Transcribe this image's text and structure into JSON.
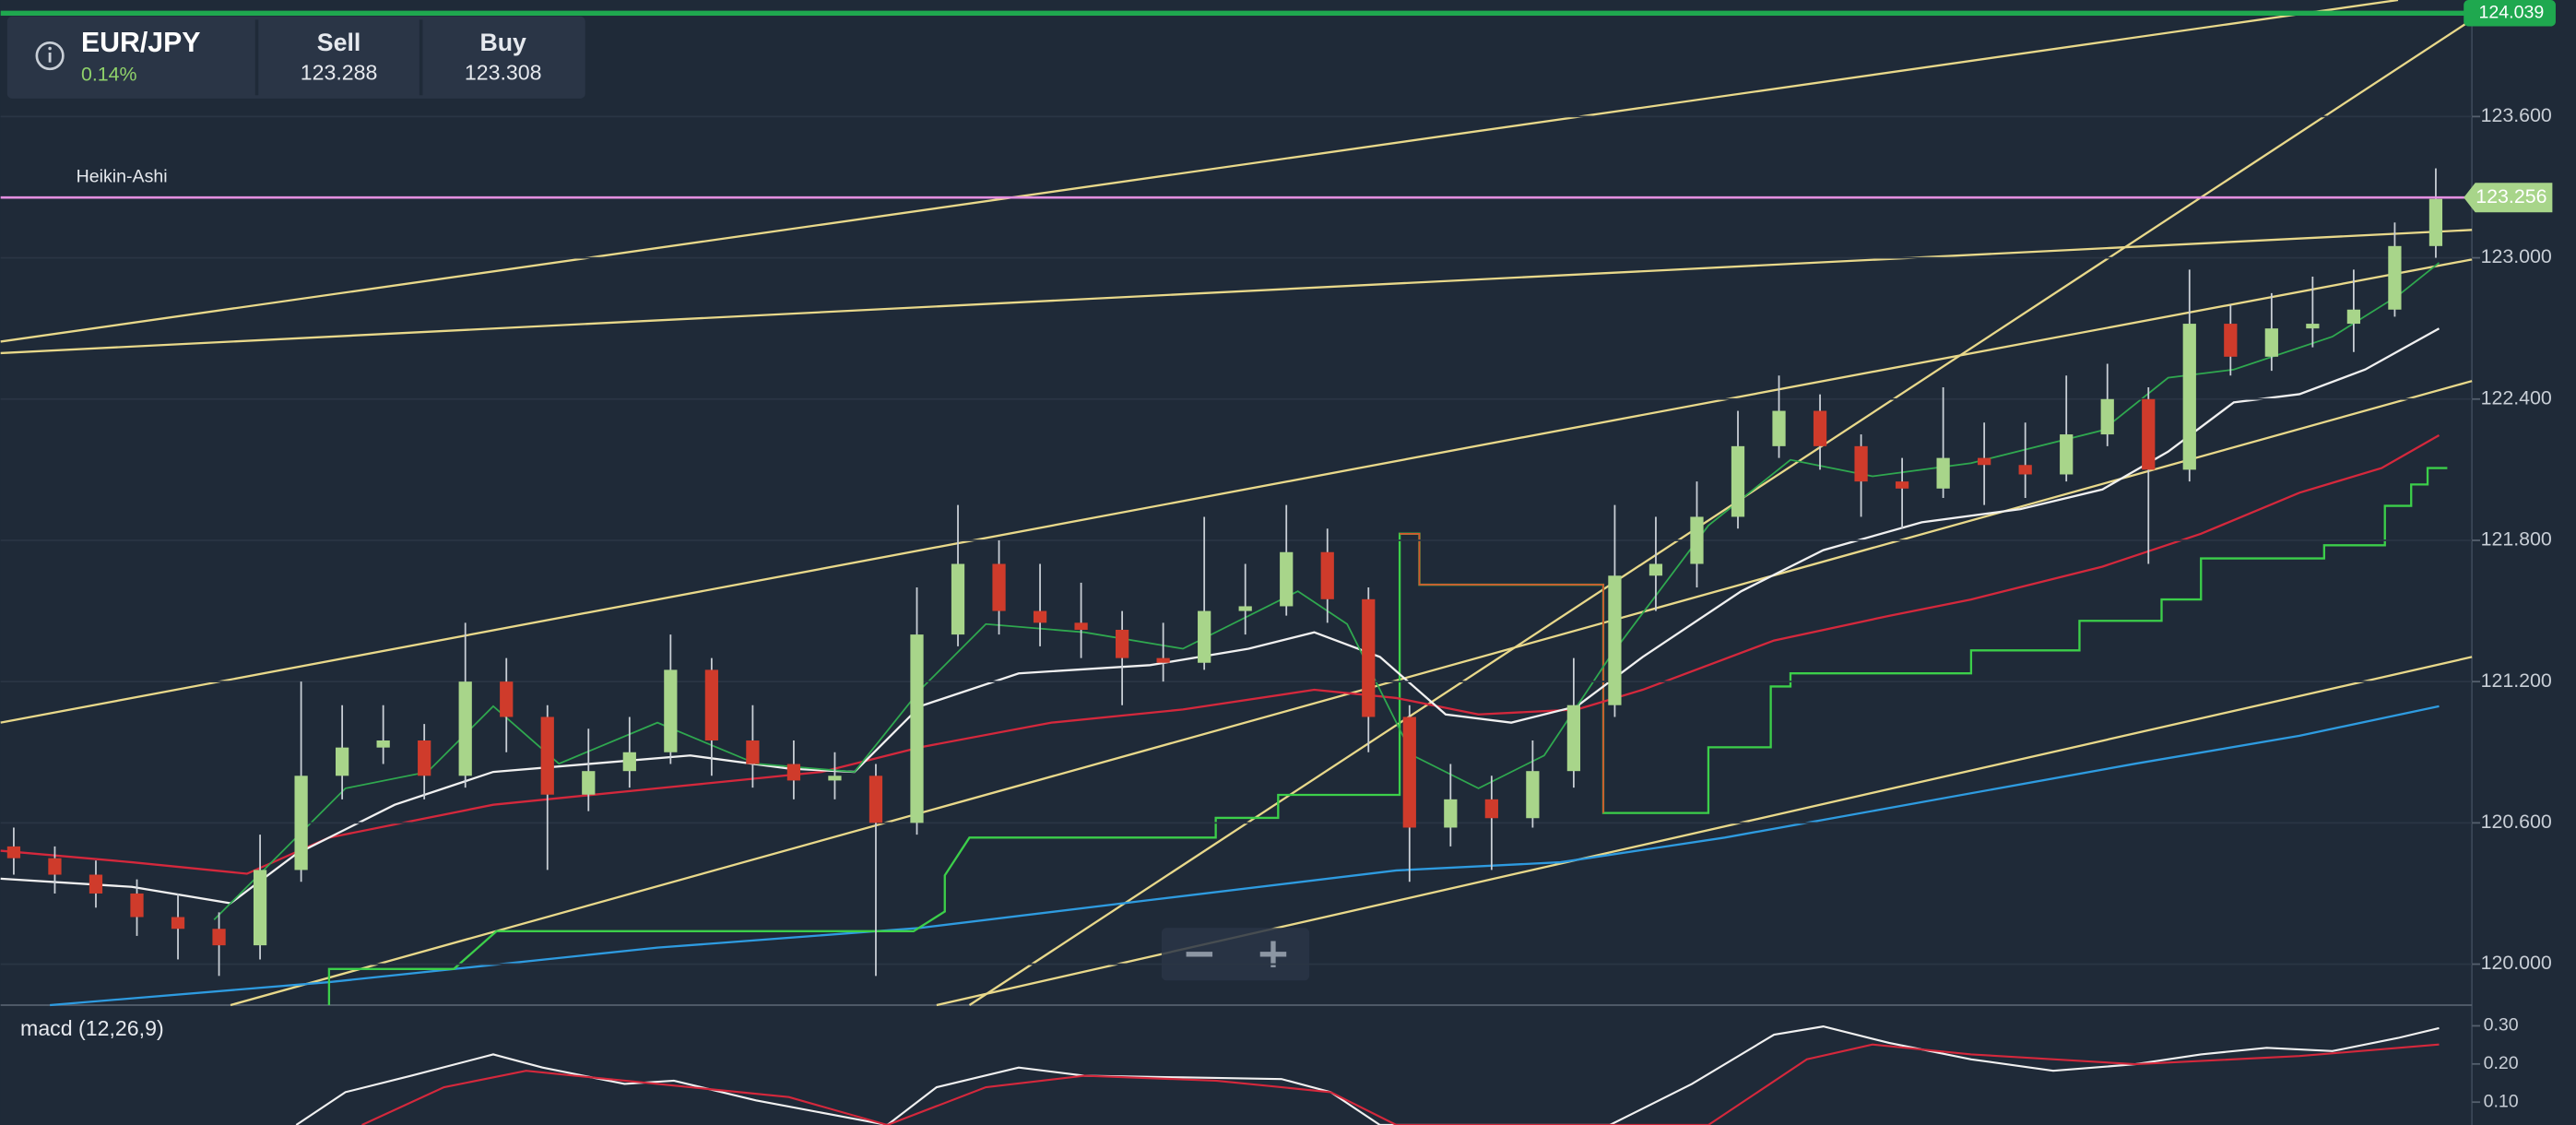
{
  "header": {
    "pair": "EUR/JPY",
    "change": "0.14%",
    "sell_label": "Sell",
    "sell": "123.288",
    "buy_label": "Buy",
    "buy": "123.308"
  },
  "chart": {
    "label": "Heikin-Ashi",
    "ylim": [
      119.826,
      124.095
    ],
    "yticks": [
      {
        "value": 123.6,
        "label": "123.600"
      },
      {
        "value": 123.0,
        "label": "123.000"
      },
      {
        "value": 122.4,
        "label": "122.400"
      },
      {
        "value": 121.8,
        "label": "121.800"
      },
      {
        "value": 121.2,
        "label": "121.200"
      },
      {
        "value": 120.6,
        "label": "120.600"
      },
      {
        "value": 120.0,
        "label": "120.000"
      }
    ],
    "top_line": {
      "value": 124.039,
      "label": "124.039"
    },
    "price_line": {
      "value": 123.256,
      "label": "123.256"
    },
    "candles": [
      [
        120.5,
        120.58,
        120.38,
        120.45
      ],
      [
        120.45,
        120.5,
        120.3,
        120.38
      ],
      [
        120.38,
        120.44,
        120.24,
        120.3
      ],
      [
        120.3,
        120.36,
        120.12,
        120.2
      ],
      [
        120.2,
        120.3,
        120.02,
        120.15
      ],
      [
        120.15,
        120.22,
        119.95,
        120.08
      ],
      [
        120.08,
        120.55,
        120.02,
        120.4
      ],
      [
        120.4,
        121.2,
        120.35,
        120.8
      ],
      [
        120.8,
        121.1,
        120.7,
        120.92
      ],
      [
        120.92,
        121.1,
        120.85,
        120.95
      ],
      [
        120.95,
        121.02,
        120.7,
        120.8
      ],
      [
        120.8,
        121.45,
        120.75,
        121.2
      ],
      [
        121.2,
        121.3,
        120.9,
        121.05
      ],
      [
        121.05,
        121.1,
        120.4,
        120.72
      ],
      [
        120.72,
        121.0,
        120.65,
        120.82
      ],
      [
        120.82,
        121.05,
        120.75,
        120.9
      ],
      [
        120.9,
        121.4,
        120.85,
        121.25
      ],
      [
        121.25,
        121.3,
        120.8,
        120.95
      ],
      [
        120.95,
        121.1,
        120.75,
        120.85
      ],
      [
        120.85,
        120.95,
        120.7,
        120.78
      ],
      [
        120.78,
        120.9,
        120.7,
        120.8
      ],
      [
        120.8,
        120.85,
        119.95,
        120.6
      ],
      [
        120.6,
        121.6,
        120.55,
        121.4
      ],
      [
        121.4,
        121.95,
        121.35,
        121.7
      ],
      [
        121.7,
        121.8,
        121.4,
        121.5
      ],
      [
        121.5,
        121.7,
        121.35,
        121.45
      ],
      [
        121.45,
        121.62,
        121.3,
        121.42
      ],
      [
        121.42,
        121.5,
        121.1,
        121.3
      ],
      [
        121.3,
        121.45,
        121.2,
        121.28
      ],
      [
        121.28,
        121.9,
        121.25,
        121.5
      ],
      [
        121.5,
        121.7,
        121.4,
        121.52
      ],
      [
        121.52,
        121.95,
        121.48,
        121.75
      ],
      [
        121.75,
        121.85,
        121.45,
        121.55
      ],
      [
        121.55,
        121.6,
        120.9,
        121.05
      ],
      [
        121.05,
        121.1,
        120.35,
        120.58
      ],
      [
        120.58,
        120.85,
        120.5,
        120.7
      ],
      [
        120.7,
        120.8,
        120.4,
        120.62
      ],
      [
        120.62,
        120.95,
        120.58,
        120.82
      ],
      [
        120.82,
        121.3,
        120.75,
        121.1
      ],
      [
        121.1,
        121.95,
        121.05,
        121.65
      ],
      [
        121.65,
        121.9,
        121.5,
        121.7
      ],
      [
        121.7,
        122.05,
        121.6,
        121.9
      ],
      [
        121.9,
        122.35,
        121.85,
        122.2
      ],
      [
        122.2,
        122.5,
        122.15,
        122.35
      ],
      [
        122.35,
        122.42,
        122.1,
        122.2
      ],
      [
        122.2,
        122.25,
        121.9,
        122.05
      ],
      [
        122.05,
        122.15,
        121.85,
        122.02
      ],
      [
        122.02,
        122.45,
        121.98,
        122.15
      ],
      [
        122.15,
        122.3,
        121.95,
        122.12
      ],
      [
        122.12,
        122.3,
        121.98,
        122.08
      ],
      [
        122.08,
        122.5,
        122.05,
        122.25
      ],
      [
        122.25,
        122.55,
        122.2,
        122.4
      ],
      [
        122.4,
        122.45,
        121.7,
        122.1
      ],
      [
        122.1,
        122.95,
        122.05,
        122.72
      ],
      [
        122.72,
        122.8,
        122.5,
        122.58
      ],
      [
        122.58,
        122.85,
        122.52,
        122.7
      ],
      [
        122.7,
        122.92,
        122.62,
        122.72
      ],
      [
        122.72,
        122.95,
        122.6,
        122.78
      ],
      [
        122.78,
        123.15,
        122.75,
        123.05
      ],
      [
        123.05,
        123.38,
        123.0,
        123.25
      ]
    ]
  },
  "macd": {
    "label": "macd (12,26,9)",
    "ylim": [
      0.04,
      0.35
    ],
    "yticks": [
      {
        "value": 0.3,
        "label": "0.30"
      },
      {
        "value": 0.2,
        "label": "0.20"
      },
      {
        "value": 0.1,
        "label": "0.10"
      }
    ]
  }
}
